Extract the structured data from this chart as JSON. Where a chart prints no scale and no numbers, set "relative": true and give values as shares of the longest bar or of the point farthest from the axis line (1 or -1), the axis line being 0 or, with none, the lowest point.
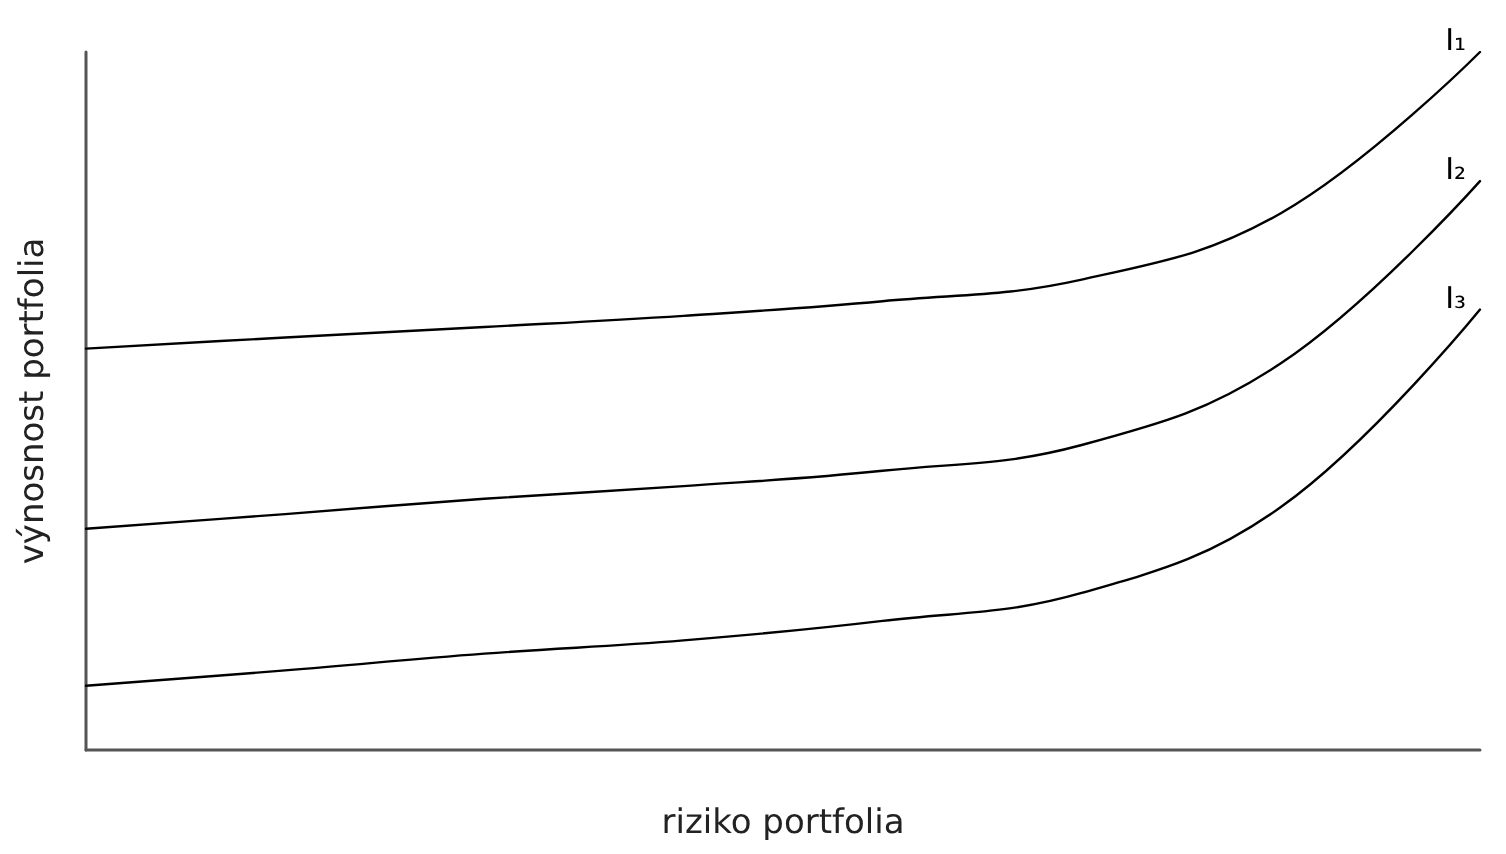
{
  "chart_data": {
    "type": "line",
    "relative": true,
    "xlabel": "riziko portfolia",
    "ylabel": "výnosnost portfolia",
    "grid": false,
    "legend": false,
    "marker": "none",
    "line_style": "solid",
    "categories": [
      null,
      null,
      null,
      null,
      null,
      null,
      null,
      null
    ],
    "series": [
      {
        "name": "I₁",
        "color": "#000000",
        "values": [
          0.575,
          0.591,
          0.606,
          0.622,
          0.643,
          0.674,
          0.769,
          1
        ]
      },
      {
        "name": "I₂",
        "color": "#000000",
        "values": [
          0.317,
          0.338,
          0.36,
          0.378,
          0.4,
          0.437,
          0.554,
          0.815
        ]
      },
      {
        "name": "I₃",
        "color": "#000000",
        "values": [
          0.092,
          0.114,
          0.138,
          0.157,
          0.185,
          0.225,
          0.348,
          0.631
        ]
      }
    ]
  }
}
